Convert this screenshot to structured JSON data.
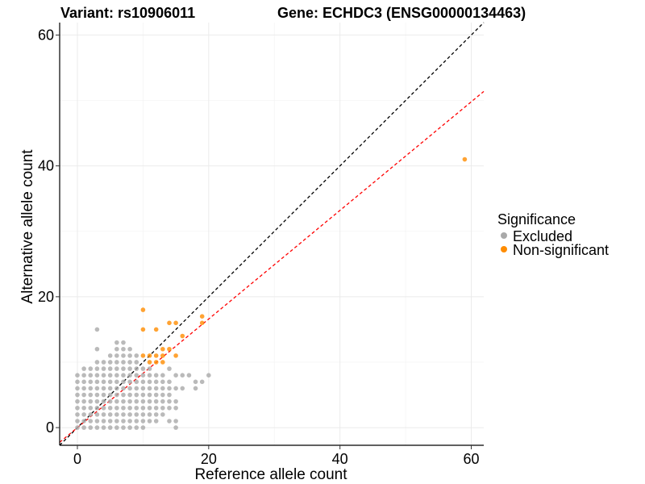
{
  "chart_data": {
    "type": "scatter",
    "title_left": "Variant: rs10906011",
    "title_right": "Gene: ECHDC3 (ENSG00000134463)",
    "xlabel": "Reference allele count",
    "ylabel": "Alternative allele count",
    "xlim": [
      -2.7,
      61.9
    ],
    "ylim": [
      -2.7,
      61.9
    ],
    "x_ticks": [
      0,
      20,
      40,
      60
    ],
    "y_ticks": [
      0,
      20,
      40,
      60
    ],
    "grid": true,
    "legend": {
      "title": "Significance",
      "placement": "right",
      "entries": [
        {
          "label": "Excluded",
          "color": "#a9a9a9"
        },
        {
          "label": "Non-significant",
          "color": "#ff8c00"
        }
      ]
    },
    "reference_lines": [
      {
        "name": "identity",
        "slope": 1,
        "intercept": 0,
        "color": "#000000",
        "dash": true
      },
      {
        "name": "fit",
        "slope": 0.83,
        "intercept": 0,
        "color": "#ff0000",
        "dash": true
      }
    ],
    "series": [
      {
        "name": "Excluded",
        "color": "#a9a9a9",
        "points": [
          [
            0,
            0
          ],
          [
            0,
            1
          ],
          [
            0,
            2
          ],
          [
            0,
            3
          ],
          [
            0,
            4
          ],
          [
            0,
            5
          ],
          [
            0,
            6
          ],
          [
            0,
            7
          ],
          [
            0,
            8
          ],
          [
            1,
            0
          ],
          [
            1,
            1
          ],
          [
            1,
            2
          ],
          [
            1,
            3
          ],
          [
            1,
            4
          ],
          [
            1,
            5
          ],
          [
            1,
            6
          ],
          [
            1,
            7
          ],
          [
            1,
            8
          ],
          [
            1,
            9
          ],
          [
            2,
            0
          ],
          [
            2,
            1
          ],
          [
            2,
            2
          ],
          [
            2,
            3
          ],
          [
            2,
            4
          ],
          [
            2,
            5
          ],
          [
            2,
            6
          ],
          [
            2,
            7
          ],
          [
            2,
            8
          ],
          [
            2,
            9
          ],
          [
            3,
            0
          ],
          [
            3,
            1
          ],
          [
            3,
            2
          ],
          [
            3,
            3
          ],
          [
            3,
            4
          ],
          [
            3,
            5
          ],
          [
            3,
            6
          ],
          [
            3,
            7
          ],
          [
            3,
            8
          ],
          [
            3,
            9
          ],
          [
            3,
            10
          ],
          [
            3,
            12
          ],
          [
            3,
            15
          ],
          [
            4,
            0
          ],
          [
            4,
            1
          ],
          [
            4,
            2
          ],
          [
            4,
            3
          ],
          [
            4,
            4
          ],
          [
            4,
            5
          ],
          [
            4,
            6
          ],
          [
            4,
            7
          ],
          [
            4,
            8
          ],
          [
            4,
            9
          ],
          [
            4,
            10
          ],
          [
            5,
            0
          ],
          [
            5,
            1
          ],
          [
            5,
            2
          ],
          [
            5,
            3
          ],
          [
            5,
            4
          ],
          [
            5,
            5
          ],
          [
            5,
            6
          ],
          [
            5,
            7
          ],
          [
            5,
            8
          ],
          [
            5,
            9
          ],
          [
            5,
            10
          ],
          [
            5,
            11
          ],
          [
            6,
            0
          ],
          [
            6,
            1
          ],
          [
            6,
            2
          ],
          [
            6,
            3
          ],
          [
            6,
            4
          ],
          [
            6,
            5
          ],
          [
            6,
            6
          ],
          [
            6,
            7
          ],
          [
            6,
            8
          ],
          [
            6,
            9
          ],
          [
            6,
            10
          ],
          [
            6,
            11
          ],
          [
            6,
            12
          ],
          [
            6,
            13
          ],
          [
            7,
            0
          ],
          [
            7,
            1
          ],
          [
            7,
            2
          ],
          [
            7,
            3
          ],
          [
            7,
            4
          ],
          [
            7,
            5
          ],
          [
            7,
            6
          ],
          [
            7,
            7
          ],
          [
            7,
            8
          ],
          [
            7,
            9
          ],
          [
            7,
            10
          ],
          [
            7,
            11
          ],
          [
            7,
            12
          ],
          [
            7,
            13
          ],
          [
            8,
            0
          ],
          [
            8,
            1
          ],
          [
            8,
            2
          ],
          [
            8,
            3
          ],
          [
            8,
            4
          ],
          [
            8,
            5
          ],
          [
            8,
            6
          ],
          [
            8,
            7
          ],
          [
            8,
            8
          ],
          [
            8,
            9
          ],
          [
            8,
            10
          ],
          [
            8,
            11
          ],
          [
            8,
            12
          ],
          [
            9,
            0
          ],
          [
            9,
            1
          ],
          [
            9,
            2
          ],
          [
            9,
            3
          ],
          [
            9,
            4
          ],
          [
            9,
            5
          ],
          [
            9,
            6
          ],
          [
            9,
            7
          ],
          [
            9,
            8
          ],
          [
            9,
            9
          ],
          [
            9,
            10
          ],
          [
            9,
            11
          ],
          [
            10,
            0
          ],
          [
            10,
            1
          ],
          [
            10,
            2
          ],
          [
            10,
            3
          ],
          [
            10,
            4
          ],
          [
            10,
            5
          ],
          [
            10,
            6
          ],
          [
            10,
            7
          ],
          [
            10,
            8
          ],
          [
            10,
            9
          ],
          [
            11,
            1
          ],
          [
            11,
            2
          ],
          [
            11,
            3
          ],
          [
            11,
            4
          ],
          [
            11,
            5
          ],
          [
            11,
            6
          ],
          [
            11,
            7
          ],
          [
            11,
            8
          ],
          [
            11,
            9
          ],
          [
            12,
            1
          ],
          [
            12,
            2
          ],
          [
            12,
            3
          ],
          [
            12,
            4
          ],
          [
            12,
            5
          ],
          [
            12,
            6
          ],
          [
            12,
            7
          ],
          [
            12,
            8
          ],
          [
            13,
            2
          ],
          [
            13,
            3
          ],
          [
            13,
            4
          ],
          [
            13,
            5
          ],
          [
            13,
            6
          ],
          [
            13,
            7
          ],
          [
            13,
            8
          ],
          [
            14,
            1
          ],
          [
            14,
            3
          ],
          [
            14,
            4
          ],
          [
            14,
            5
          ],
          [
            14,
            6
          ],
          [
            14,
            7
          ],
          [
            14,
            9
          ],
          [
            15,
            0
          ],
          [
            15,
            1
          ],
          [
            15,
            3
          ],
          [
            15,
            4
          ],
          [
            15,
            6
          ],
          [
            15,
            8
          ],
          [
            16,
            6
          ],
          [
            16,
            8
          ],
          [
            17,
            8
          ],
          [
            18,
            6
          ],
          [
            18,
            7
          ],
          [
            19,
            7
          ],
          [
            20,
            8
          ]
        ]
      },
      {
        "name": "Non-significant",
        "color": "#ff8c00",
        "points": [
          [
            10,
            18
          ],
          [
            10,
            15
          ],
          [
            10,
            11
          ],
          [
            11,
            10
          ],
          [
            11,
            11
          ],
          [
            12,
            15
          ],
          [
            12,
            11
          ],
          [
            12,
            10
          ],
          [
            13,
            12
          ],
          [
            13,
            10
          ],
          [
            13,
            11
          ],
          [
            14,
            16
          ],
          [
            14,
            12
          ],
          [
            15,
            16
          ],
          [
            15,
            11
          ],
          [
            16,
            14
          ],
          [
            19,
            17
          ],
          [
            19,
            16
          ],
          [
            59,
            41
          ]
        ]
      }
    ]
  }
}
